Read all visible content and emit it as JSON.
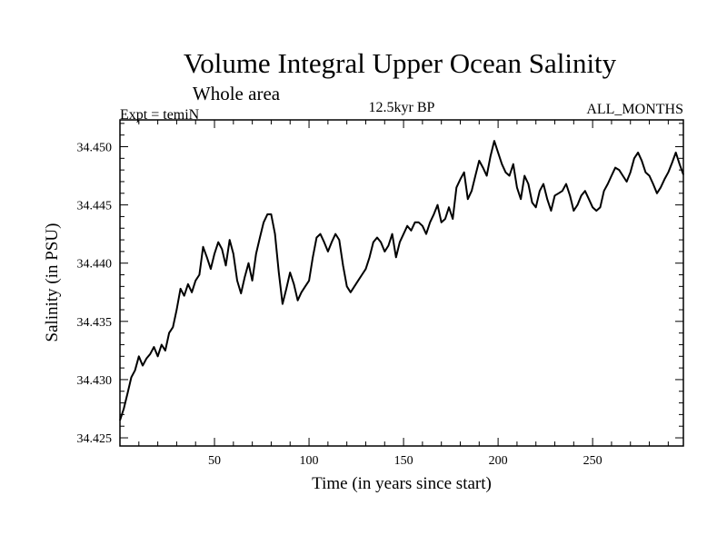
{
  "chart_data": {
    "type": "line",
    "title": "Volume Integral Upper Ocean Salinity",
    "subtitle": "Whole area",
    "left_label": "Expt = temiN",
    "center_label": "12.5kyr BP",
    "right_label": "ALL_MONTHS",
    "xlabel": "Time (in years since start)",
    "ylabel": "Salinity (in PSU)",
    "xlim": [
      0,
      298
    ],
    "ylim": [
      34.4243,
      34.4523
    ],
    "xticks": [
      "50",
      "100",
      "150",
      "200",
      "250"
    ],
    "xtick_values": [
      50,
      100,
      150,
      200,
      250
    ],
    "yticks": [
      "34.425",
      "34.430",
      "34.435",
      "34.440",
      "34.445",
      "34.450"
    ],
    "ytick_values": [
      34.425,
      34.43,
      34.435,
      34.44,
      34.445,
      34.45
    ],
    "grid": false,
    "line_color": "#000000",
    "series": [
      {
        "name": "Salinity",
        "x": [
          0,
          2,
          4,
          6,
          8,
          10,
          12,
          14,
          16,
          18,
          20,
          22,
          24,
          26,
          28,
          30,
          32,
          34,
          36,
          38,
          40,
          42,
          44,
          46,
          48,
          50,
          52,
          54,
          56,
          58,
          60,
          62,
          64,
          66,
          68,
          70,
          72,
          74,
          76,
          78,
          80,
          82,
          84,
          86,
          88,
          90,
          92,
          94,
          96,
          98,
          100,
          102,
          104,
          106,
          108,
          110,
          112,
          114,
          116,
          118,
          120,
          122,
          124,
          126,
          128,
          130,
          132,
          134,
          136,
          138,
          140,
          142,
          144,
          146,
          148,
          150,
          152,
          154,
          156,
          158,
          160,
          162,
          164,
          166,
          168,
          170,
          172,
          174,
          176,
          178,
          180,
          182,
          184,
          186,
          188,
          190,
          192,
          194,
          196,
          198,
          200,
          202,
          204,
          206,
          208,
          210,
          212,
          214,
          216,
          218,
          220,
          222,
          224,
          226,
          228,
          230,
          232,
          234,
          236,
          238,
          240,
          242,
          244,
          246,
          248,
          250,
          252,
          254,
          256,
          258,
          260,
          262,
          264,
          266,
          268,
          270,
          272,
          274,
          276,
          278,
          280,
          282,
          284,
          286,
          288,
          290,
          292,
          294,
          296,
          298
        ],
        "values": [
          34.4265,
          34.4275,
          34.4288,
          34.4302,
          34.4308,
          34.432,
          34.4312,
          34.4318,
          34.4322,
          34.4328,
          34.432,
          34.433,
          34.4325,
          34.434,
          34.4345,
          34.436,
          34.4378,
          34.4372,
          34.4382,
          34.4375,
          34.4385,
          34.439,
          34.4414,
          34.4405,
          34.4395,
          34.4408,
          34.4418,
          34.4412,
          34.4398,
          34.442,
          34.4408,
          34.4385,
          34.4374,
          34.4388,
          34.44,
          34.4385,
          34.4408,
          34.4422,
          34.4435,
          34.4442,
          34.4442,
          34.4425,
          34.4392,
          34.4365,
          34.4378,
          34.4392,
          34.4382,
          34.4368,
          34.4375,
          34.438,
          34.4385,
          34.4405,
          34.4422,
          34.4425,
          34.4418,
          34.441,
          34.4418,
          34.4425,
          34.442,
          34.4398,
          34.438,
          34.4375,
          34.438,
          34.4385,
          34.439,
          34.4395,
          34.4405,
          34.4418,
          34.4422,
          34.4418,
          34.441,
          34.4415,
          34.4425,
          34.4405,
          34.4418,
          34.4425,
          34.4432,
          34.4428,
          34.4435,
          34.4435,
          34.4432,
          34.4425,
          34.4435,
          34.4442,
          34.445,
          34.4435,
          34.4438,
          34.4448,
          34.4438,
          34.4465,
          34.4472,
          34.4478,
          34.4455,
          34.4462,
          34.4475,
          34.4488,
          34.4482,
          34.4475,
          34.4492,
          34.4505,
          34.4495,
          34.4485,
          34.4478,
          34.4475,
          34.4485,
          34.4465,
          34.4455,
          34.4475,
          34.4468,
          34.4452,
          34.4448,
          34.4462,
          34.4468,
          34.4455,
          34.4445,
          34.4458,
          34.446,
          34.4462,
          34.4468,
          34.4458,
          34.4445,
          34.445,
          34.4458,
          34.4462,
          34.4455,
          34.4448,
          34.4445,
          34.4448,
          34.4462,
          34.4468,
          34.4475,
          34.4482,
          34.448,
          34.4475,
          34.447,
          34.4478,
          34.449,
          34.4495,
          34.4488,
          34.4478,
          34.4475,
          34.4468,
          34.446,
          34.4465,
          34.4472,
          34.4478,
          34.4486,
          34.4495,
          34.4485,
          34.4476
        ]
      }
    ]
  }
}
